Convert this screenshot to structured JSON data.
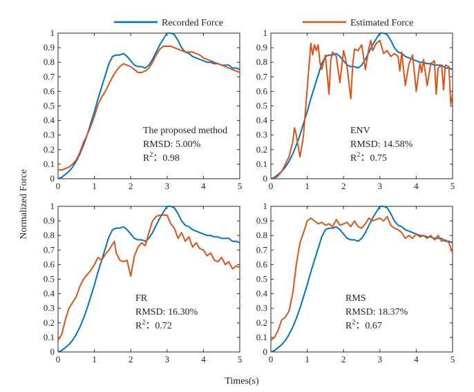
{
  "legend": {
    "recorded_label": "Recorded Force",
    "estimated_label": "Estimated Force",
    "recorded_color": "#0072BD",
    "estimated_color": "#D95319"
  },
  "ylabel": "Normalized Force",
  "xlabel": "Times(s)",
  "chart_data": [
    {
      "type": "line",
      "xlim": [
        0,
        5
      ],
      "ylim": [
        0,
        1
      ],
      "xticks": [
        "0",
        "1",
        "2",
        "3",
        "4",
        "5"
      ],
      "yticks": [
        "0",
        "0.1",
        "0.2",
        "0.3",
        "0.4",
        "0.5",
        "0.6",
        "0.7",
        "0.8",
        "0.9",
        "1"
      ],
      "annotation": {
        "method": "The proposed method",
        "rmsd": "RMSD:  5.00%",
        "r2_base": "R",
        "r2_sup": "2",
        "r2_value": "：0.98"
      },
      "series": [
        {
          "name": "Recorded Force",
          "color": "#0072BD",
          "x": [
            0,
            0.1,
            0.2,
            0.3,
            0.4,
            0.5,
            0.6,
            0.7,
            0.8,
            0.9,
            1.0,
            1.1,
            1.2,
            1.3,
            1.4,
            1.5,
            1.6,
            1.7,
            1.8,
            1.9,
            2.0,
            2.1,
            2.2,
            2.3,
            2.4,
            2.5,
            2.6,
            2.7,
            2.8,
            2.9,
            3.0,
            3.1,
            3.2,
            3.3,
            3.4,
            3.5,
            3.6,
            3.7,
            3.8,
            3.9,
            4.0,
            4.1,
            4.2,
            4.3,
            4.4,
            4.5,
            4.6,
            4.7,
            4.8,
            4.9,
            5.0
          ],
          "y": [
            0.0,
            0.01,
            0.03,
            0.05,
            0.08,
            0.12,
            0.17,
            0.23,
            0.3,
            0.38,
            0.46,
            0.55,
            0.63,
            0.71,
            0.79,
            0.84,
            0.85,
            0.85,
            0.86,
            0.84,
            0.81,
            0.78,
            0.77,
            0.77,
            0.76,
            0.78,
            0.82,
            0.87,
            0.92,
            0.96,
            1.0,
            1.0,
            0.99,
            0.95,
            0.9,
            0.87,
            0.86,
            0.84,
            0.83,
            0.82,
            0.81,
            0.8,
            0.8,
            0.79,
            0.79,
            0.78,
            0.78,
            0.78,
            0.76,
            0.76,
            0.75
          ]
        },
        {
          "name": "Estimated Force",
          "color": "#D95319",
          "x": [
            0,
            0.1,
            0.2,
            0.3,
            0.4,
            0.5,
            0.6,
            0.7,
            0.8,
            0.9,
            1.0,
            1.1,
            1.2,
            1.3,
            1.4,
            1.5,
            1.6,
            1.7,
            1.8,
            1.9,
            2.0,
            2.1,
            2.2,
            2.3,
            2.4,
            2.5,
            2.6,
            2.7,
            2.8,
            2.9,
            3.0,
            3.1,
            3.2,
            3.3,
            3.4,
            3.5,
            3.6,
            3.7,
            3.8,
            3.9,
            4.0,
            4.1,
            4.2,
            4.3,
            4.4,
            4.5,
            4.6,
            4.7,
            4.8,
            4.9,
            5.0
          ],
          "y": [
            0.06,
            0.06,
            0.07,
            0.08,
            0.1,
            0.13,
            0.18,
            0.25,
            0.3,
            0.36,
            0.43,
            0.51,
            0.56,
            0.6,
            0.65,
            0.7,
            0.74,
            0.77,
            0.79,
            0.78,
            0.77,
            0.75,
            0.73,
            0.73,
            0.74,
            0.76,
            0.8,
            0.85,
            0.89,
            0.91,
            0.91,
            0.91,
            0.9,
            0.89,
            0.88,
            0.87,
            0.87,
            0.87,
            0.86,
            0.85,
            0.83,
            0.82,
            0.81,
            0.8,
            0.79,
            0.78,
            0.77,
            0.76,
            0.75,
            0.74,
            0.73
          ]
        }
      ]
    },
    {
      "type": "line",
      "xlim": [
        0,
        5
      ],
      "ylim": [
        0,
        1
      ],
      "xticks": [
        "0",
        "1",
        "2",
        "3",
        "4",
        "5"
      ],
      "yticks": [
        "0",
        "0.1",
        "0.2",
        "0.3",
        "0.4",
        "0.5",
        "0.6",
        "0.7",
        "0.8",
        "0.9",
        "1"
      ],
      "annotation": {
        "method": "ENV",
        "rmsd": "RMSD:  14.58%",
        "r2_base": "R",
        "r2_sup": "2",
        "r2_value": "：0.75"
      },
      "series": [
        {
          "name": "Recorded Force",
          "color": "#0072BD",
          "x": [
            0,
            0.1,
            0.2,
            0.3,
            0.4,
            0.5,
            0.6,
            0.7,
            0.8,
            0.9,
            1.0,
            1.1,
            1.2,
            1.3,
            1.4,
            1.5,
            1.6,
            1.7,
            1.8,
            1.9,
            2.0,
            2.1,
            2.2,
            2.3,
            2.4,
            2.5,
            2.6,
            2.7,
            2.8,
            2.9,
            3.0,
            3.1,
            3.2,
            3.3,
            3.4,
            3.5,
            3.6,
            3.7,
            3.8,
            3.9,
            4.0,
            4.1,
            4.2,
            4.3,
            4.4,
            4.5,
            4.6,
            4.7,
            4.8,
            4.9,
            5.0
          ],
          "y": [
            0.0,
            0.01,
            0.03,
            0.05,
            0.08,
            0.12,
            0.17,
            0.23,
            0.3,
            0.38,
            0.46,
            0.55,
            0.63,
            0.71,
            0.79,
            0.84,
            0.85,
            0.85,
            0.86,
            0.84,
            0.81,
            0.78,
            0.77,
            0.77,
            0.76,
            0.78,
            0.82,
            0.87,
            0.92,
            0.96,
            1.0,
            1.0,
            0.99,
            0.95,
            0.9,
            0.87,
            0.86,
            0.84,
            0.83,
            0.82,
            0.81,
            0.8,
            0.8,
            0.79,
            0.79,
            0.78,
            0.78,
            0.78,
            0.76,
            0.76,
            0.75
          ]
        },
        {
          "name": "Estimated Force",
          "color": "#D95319",
          "x": [
            0,
            0.1,
            0.2,
            0.3,
            0.4,
            0.5,
            0.6,
            0.65,
            0.7,
            0.8,
            0.85,
            0.9,
            1.0,
            1.1,
            1.15,
            1.2,
            1.25,
            1.3,
            1.35,
            1.4,
            1.5,
            1.6,
            1.65,
            1.7,
            1.8,
            1.9,
            2.0,
            2.05,
            2.1,
            2.2,
            2.25,
            2.3,
            2.4,
            2.5,
            2.6,
            2.7,
            2.75,
            2.8,
            2.9,
            3.0,
            3.1,
            3.2,
            3.3,
            3.4,
            3.5,
            3.55,
            3.6,
            3.7,
            3.8,
            3.9,
            4.0,
            4.1,
            4.15,
            4.2,
            4.3,
            4.4,
            4.5,
            4.55,
            4.6,
            4.7,
            4.75,
            4.8,
            4.9,
            4.95,
            5.0
          ],
          "y": [
            0.0,
            0.0,
            0.02,
            0.05,
            0.1,
            0.15,
            0.25,
            0.35,
            0.3,
            0.15,
            0.22,
            0.3,
            0.62,
            0.93,
            0.85,
            0.92,
            0.88,
            0.92,
            0.8,
            0.75,
            0.85,
            0.58,
            0.82,
            0.87,
            0.84,
            0.66,
            0.88,
            0.83,
            0.76,
            0.55,
            0.78,
            0.89,
            0.88,
            0.92,
            0.75,
            0.9,
            0.95,
            0.88,
            0.93,
            0.95,
            0.86,
            0.88,
            0.84,
            0.86,
            0.84,
            0.74,
            0.87,
            0.64,
            0.79,
            0.85,
            0.6,
            0.79,
            0.73,
            0.82,
            0.64,
            0.79,
            0.81,
            0.58,
            0.76,
            0.78,
            0.61,
            0.78,
            0.77,
            0.51,
            0.58
          ]
        }
      ]
    },
    {
      "type": "line",
      "xlim": [
        0,
        5
      ],
      "ylim": [
        0,
        1
      ],
      "xticks": [
        "0",
        "1",
        "2",
        "3",
        "4",
        "5"
      ],
      "yticks": [
        "0",
        "0.1",
        "0.2",
        "0.3",
        "0.4",
        "0.5",
        "0.6",
        "0.7",
        "0.8",
        "0.9",
        "1"
      ],
      "annotation": {
        "method": "FR",
        "rmsd": "RMSD:  16.30%",
        "r2_base": "R",
        "r2_sup": "2",
        "r2_value": "：0.72"
      },
      "series": [
        {
          "name": "Recorded Force",
          "color": "#0072BD",
          "x": [
            0,
            0.1,
            0.2,
            0.3,
            0.4,
            0.5,
            0.6,
            0.7,
            0.8,
            0.9,
            1.0,
            1.1,
            1.2,
            1.3,
            1.4,
            1.5,
            1.6,
            1.7,
            1.8,
            1.9,
            2.0,
            2.1,
            2.2,
            2.3,
            2.4,
            2.5,
            2.6,
            2.7,
            2.8,
            2.9,
            3.0,
            3.1,
            3.2,
            3.3,
            3.4,
            3.5,
            3.6,
            3.7,
            3.8,
            3.9,
            4.0,
            4.1,
            4.2,
            4.3,
            4.4,
            4.5,
            4.6,
            4.7,
            4.8,
            4.9,
            5.0
          ],
          "y": [
            0.0,
            0.01,
            0.03,
            0.05,
            0.08,
            0.12,
            0.17,
            0.23,
            0.3,
            0.38,
            0.46,
            0.55,
            0.63,
            0.71,
            0.79,
            0.84,
            0.85,
            0.85,
            0.86,
            0.84,
            0.81,
            0.78,
            0.77,
            0.77,
            0.76,
            0.78,
            0.82,
            0.87,
            0.92,
            0.96,
            1.0,
            1.0,
            0.99,
            0.95,
            0.9,
            0.87,
            0.86,
            0.84,
            0.83,
            0.82,
            0.81,
            0.8,
            0.8,
            0.79,
            0.79,
            0.78,
            0.78,
            0.78,
            0.76,
            0.76,
            0.75
          ]
        },
        {
          "name": "Estimated Force",
          "color": "#D95319",
          "x": [
            0,
            0.1,
            0.2,
            0.3,
            0.4,
            0.5,
            0.6,
            0.7,
            0.8,
            0.9,
            1.0,
            1.1,
            1.2,
            1.3,
            1.4,
            1.5,
            1.55,
            1.6,
            1.7,
            1.8,
            1.9,
            2.0,
            2.1,
            2.2,
            2.3,
            2.4,
            2.5,
            2.6,
            2.7,
            2.8,
            2.9,
            3.0,
            3.1,
            3.2,
            3.3,
            3.4,
            3.5,
            3.6,
            3.7,
            3.8,
            3.9,
            4.0,
            4.1,
            4.2,
            4.3,
            4.4,
            4.5,
            4.6,
            4.7,
            4.8,
            4.9,
            5.0
          ],
          "y": [
            0.08,
            0.12,
            0.22,
            0.3,
            0.34,
            0.38,
            0.45,
            0.5,
            0.53,
            0.56,
            0.6,
            0.65,
            0.63,
            0.67,
            0.7,
            0.74,
            0.76,
            0.68,
            0.63,
            0.62,
            0.63,
            0.52,
            0.66,
            0.72,
            0.75,
            0.73,
            0.82,
            0.9,
            0.93,
            0.94,
            0.94,
            0.94,
            0.88,
            0.85,
            0.78,
            0.82,
            0.76,
            0.79,
            0.72,
            0.75,
            0.71,
            0.7,
            0.66,
            0.68,
            0.63,
            0.62,
            0.65,
            0.6,
            0.62,
            0.57,
            0.59,
            0.58
          ]
        }
      ]
    },
    {
      "type": "line",
      "xlim": [
        0,
        5
      ],
      "ylim": [
        0,
        1
      ],
      "xticks": [
        "0",
        "1",
        "2",
        "3",
        "4",
        "5"
      ],
      "yticks": [
        "0",
        "0.1",
        "0.2",
        "0.3",
        "0.4",
        "0.5",
        "0.6",
        "0.7",
        "0.8",
        "0.9",
        "1"
      ],
      "annotation": {
        "method": "RMS",
        "rmsd": "RMSD:  18.37%",
        "r2_base": "R",
        "r2_sup": "2",
        "r2_value": "：0.67"
      },
      "series": [
        {
          "name": "Recorded Force",
          "color": "#0072BD",
          "x": [
            0,
            0.1,
            0.2,
            0.3,
            0.4,
            0.5,
            0.6,
            0.7,
            0.8,
            0.9,
            1.0,
            1.1,
            1.2,
            1.3,
            1.4,
            1.5,
            1.6,
            1.7,
            1.8,
            1.9,
            2.0,
            2.1,
            2.2,
            2.3,
            2.4,
            2.5,
            2.6,
            2.7,
            2.8,
            2.9,
            3.0,
            3.1,
            3.2,
            3.3,
            3.4,
            3.5,
            3.6,
            3.7,
            3.8,
            3.9,
            4.0,
            4.1,
            4.2,
            4.3,
            4.4,
            4.5,
            4.6,
            4.7,
            4.8,
            4.9,
            5.0
          ],
          "y": [
            0.0,
            0.01,
            0.03,
            0.05,
            0.08,
            0.12,
            0.17,
            0.23,
            0.3,
            0.38,
            0.46,
            0.55,
            0.63,
            0.71,
            0.79,
            0.84,
            0.85,
            0.85,
            0.86,
            0.84,
            0.81,
            0.78,
            0.77,
            0.77,
            0.76,
            0.78,
            0.82,
            0.87,
            0.92,
            0.96,
            1.0,
            1.0,
            0.99,
            0.95,
            0.9,
            0.87,
            0.86,
            0.84,
            0.83,
            0.82,
            0.81,
            0.8,
            0.8,
            0.79,
            0.79,
            0.78,
            0.78,
            0.78,
            0.76,
            0.76,
            0.75
          ]
        },
        {
          "name": "Estimated Force",
          "color": "#D95319",
          "x": [
            0,
            0.1,
            0.2,
            0.3,
            0.4,
            0.5,
            0.6,
            0.7,
            0.8,
            0.9,
            1.0,
            1.1,
            1.2,
            1.3,
            1.4,
            1.5,
            1.6,
            1.7,
            1.8,
            1.9,
            2.0,
            2.1,
            2.2,
            2.3,
            2.4,
            2.5,
            2.6,
            2.7,
            2.8,
            2.9,
            3.0,
            3.1,
            3.2,
            3.3,
            3.4,
            3.5,
            3.6,
            3.7,
            3.8,
            3.9,
            4.0,
            4.1,
            4.2,
            4.3,
            4.4,
            4.5,
            4.6,
            4.7,
            4.8,
            4.9,
            5.0
          ],
          "y": [
            0.08,
            0.1,
            0.15,
            0.22,
            0.24,
            0.28,
            0.4,
            0.6,
            0.75,
            0.82,
            0.9,
            0.92,
            0.9,
            0.88,
            0.89,
            0.87,
            0.88,
            0.86,
            0.91,
            0.87,
            0.88,
            0.89,
            0.86,
            0.9,
            0.86,
            0.85,
            0.88,
            0.92,
            0.9,
            0.91,
            0.92,
            0.9,
            0.93,
            0.87,
            0.85,
            0.84,
            0.82,
            0.78,
            0.8,
            0.78,
            0.81,
            0.79,
            0.8,
            0.78,
            0.8,
            0.77,
            0.8,
            0.76,
            0.77,
            0.75,
            0.68
          ]
        }
      ]
    }
  ]
}
